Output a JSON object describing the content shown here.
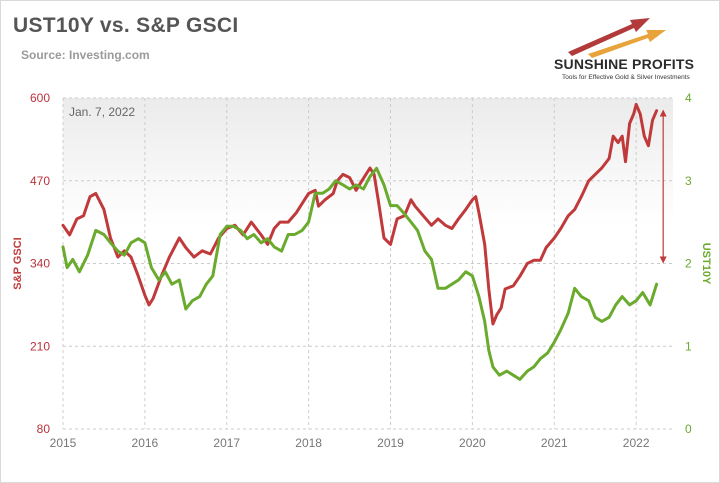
{
  "header": {
    "title": "UST10Y vs. S&P GSCI",
    "source": "Source: Investing.com"
  },
  "logo": {
    "name": "SUNSHINE PROFITS",
    "tagline": "Tools for Effective Gold & Silver Investments"
  },
  "annotation": "Jan. 7, 2022",
  "chart_data": {
    "type": "line",
    "title": "UST10Y vs. S&P GSCI",
    "x_ticks": [
      "2015",
      "2016",
      "2017",
      "2018",
      "2019",
      "2020",
      "2021",
      "2022"
    ],
    "xlim": [
      2015.0,
      2022.45
    ],
    "grid": true,
    "y_left": {
      "label": "S&P GSCI",
      "ticks": [
        600,
        470,
        340,
        210,
        80
      ],
      "lim": [
        80,
        600
      ]
    },
    "y_right": {
      "label": "UST10Y",
      "ticks": [
        4,
        3,
        2,
        1,
        0
      ],
      "lim": [
        0,
        4
      ]
    },
    "series": [
      {
        "name": "S&P GSCI",
        "axis": "left",
        "color": "#c0393b",
        "points": [
          [
            2015.0,
            400
          ],
          [
            2015.08,
            385
          ],
          [
            2015.17,
            410
          ],
          [
            2015.25,
            415
          ],
          [
            2015.33,
            445
          ],
          [
            2015.4,
            450
          ],
          [
            2015.5,
            425
          ],
          [
            2015.58,
            380
          ],
          [
            2015.67,
            350
          ],
          [
            2015.75,
            360
          ],
          [
            2015.83,
            350
          ],
          [
            2015.92,
            320
          ],
          [
            2016.0,
            290
          ],
          [
            2016.05,
            275
          ],
          [
            2016.1,
            285
          ],
          [
            2016.2,
            320
          ],
          [
            2016.3,
            350
          ],
          [
            2016.42,
            380
          ],
          [
            2016.5,
            365
          ],
          [
            2016.6,
            350
          ],
          [
            2016.7,
            360
          ],
          [
            2016.8,
            355
          ],
          [
            2016.9,
            380
          ],
          [
            2017.0,
            395
          ],
          [
            2017.1,
            400
          ],
          [
            2017.2,
            385
          ],
          [
            2017.3,
            405
          ],
          [
            2017.42,
            385
          ],
          [
            2017.5,
            370
          ],
          [
            2017.58,
            395
          ],
          [
            2017.65,
            405
          ],
          [
            2017.75,
            405
          ],
          [
            2017.85,
            420
          ],
          [
            2017.95,
            440
          ],
          [
            2018.0,
            450
          ],
          [
            2018.08,
            455
          ],
          [
            2018.12,
            430
          ],
          [
            2018.2,
            440
          ],
          [
            2018.3,
            450
          ],
          [
            2018.35,
            470
          ],
          [
            2018.42,
            480
          ],
          [
            2018.5,
            475
          ],
          [
            2018.58,
            455
          ],
          [
            2018.65,
            470
          ],
          [
            2018.75,
            490
          ],
          [
            2018.8,
            480
          ],
          [
            2018.85,
            440
          ],
          [
            2018.92,
            380
          ],
          [
            2019.0,
            370
          ],
          [
            2019.08,
            410
          ],
          [
            2019.17,
            415
          ],
          [
            2019.25,
            440
          ],
          [
            2019.3,
            430
          ],
          [
            2019.4,
            415
          ],
          [
            2019.5,
            400
          ],
          [
            2019.58,
            410
          ],
          [
            2019.67,
            400
          ],
          [
            2019.75,
            395
          ],
          [
            2019.83,
            410
          ],
          [
            2019.92,
            425
          ],
          [
            2020.0,
            440
          ],
          [
            2020.04,
            445
          ],
          [
            2020.08,
            420
          ],
          [
            2020.15,
            370
          ],
          [
            2020.2,
            300
          ],
          [
            2020.25,
            245
          ],
          [
            2020.3,
            260
          ],
          [
            2020.35,
            270
          ],
          [
            2020.4,
            300
          ],
          [
            2020.5,
            305
          ],
          [
            2020.58,
            320
          ],
          [
            2020.67,
            340
          ],
          [
            2020.75,
            345
          ],
          [
            2020.83,
            345
          ],
          [
            2020.9,
            365
          ],
          [
            2021.0,
            380
          ],
          [
            2021.08,
            395
          ],
          [
            2021.17,
            415
          ],
          [
            2021.25,
            425
          ],
          [
            2021.33,
            445
          ],
          [
            2021.42,
            470
          ],
          [
            2021.5,
            480
          ],
          [
            2021.58,
            490
          ],
          [
            2021.67,
            505
          ],
          [
            2021.72,
            540
          ],
          [
            2021.78,
            530
          ],
          [
            2021.83,
            540
          ],
          [
            2021.87,
            500
          ],
          [
            2021.92,
            560
          ],
          [
            2021.97,
            575
          ],
          [
            2022.0,
            590
          ],
          [
            2022.05,
            575
          ],
          [
            2022.1,
            540
          ],
          [
            2022.15,
            525
          ],
          [
            2022.2,
            565
          ],
          [
            2022.25,
            580
          ]
        ]
      },
      {
        "name": "UST10Y",
        "axis": "right",
        "color": "#6aaa2d",
        "points": [
          [
            2015.0,
            2.2
          ],
          [
            2015.05,
            1.95
          ],
          [
            2015.12,
            2.05
          ],
          [
            2015.2,
            1.9
          ],
          [
            2015.3,
            2.1
          ],
          [
            2015.4,
            2.4
          ],
          [
            2015.5,
            2.35
          ],
          [
            2015.58,
            2.25
          ],
          [
            2015.67,
            2.15
          ],
          [
            2015.75,
            2.1
          ],
          [
            2015.83,
            2.25
          ],
          [
            2015.92,
            2.3
          ],
          [
            2016.0,
            2.25
          ],
          [
            2016.08,
            1.95
          ],
          [
            2016.17,
            1.8
          ],
          [
            2016.25,
            1.9
          ],
          [
            2016.33,
            1.75
          ],
          [
            2016.42,
            1.8
          ],
          [
            2016.5,
            1.45
          ],
          [
            2016.58,
            1.55
          ],
          [
            2016.67,
            1.6
          ],
          [
            2016.75,
            1.75
          ],
          [
            2016.83,
            1.85
          ],
          [
            2016.92,
            2.35
          ],
          [
            2017.0,
            2.45
          ],
          [
            2017.08,
            2.45
          ],
          [
            2017.17,
            2.4
          ],
          [
            2017.25,
            2.3
          ],
          [
            2017.33,
            2.35
          ],
          [
            2017.42,
            2.25
          ],
          [
            2017.5,
            2.3
          ],
          [
            2017.58,
            2.2
          ],
          [
            2017.67,
            2.15
          ],
          [
            2017.75,
            2.35
          ],
          [
            2017.83,
            2.35
          ],
          [
            2017.92,
            2.4
          ],
          [
            2018.0,
            2.5
          ],
          [
            2018.08,
            2.85
          ],
          [
            2018.17,
            2.85
          ],
          [
            2018.25,
            2.9
          ],
          [
            2018.33,
            3.0
          ],
          [
            2018.42,
            2.95
          ],
          [
            2018.5,
            2.9
          ],
          [
            2018.58,
            2.95
          ],
          [
            2018.67,
            2.9
          ],
          [
            2018.75,
            3.05
          ],
          [
            2018.83,
            3.15
          ],
          [
            2018.92,
            2.95
          ],
          [
            2019.0,
            2.7
          ],
          [
            2019.08,
            2.7
          ],
          [
            2019.17,
            2.6
          ],
          [
            2019.25,
            2.5
          ],
          [
            2019.33,
            2.4
          ],
          [
            2019.42,
            2.15
          ],
          [
            2019.5,
            2.05
          ],
          [
            2019.58,
            1.7
          ],
          [
            2019.67,
            1.7
          ],
          [
            2019.75,
            1.75
          ],
          [
            2019.83,
            1.8
          ],
          [
            2019.92,
            1.9
          ],
          [
            2020.0,
            1.85
          ],
          [
            2020.08,
            1.6
          ],
          [
            2020.15,
            1.3
          ],
          [
            2020.2,
            0.95
          ],
          [
            2020.25,
            0.75
          ],
          [
            2020.33,
            0.65
          ],
          [
            2020.42,
            0.7
          ],
          [
            2020.5,
            0.65
          ],
          [
            2020.58,
            0.6
          ],
          [
            2020.67,
            0.7
          ],
          [
            2020.75,
            0.75
          ],
          [
            2020.83,
            0.85
          ],
          [
            2020.92,
            0.92
          ],
          [
            2021.0,
            1.05
          ],
          [
            2021.08,
            1.2
          ],
          [
            2021.17,
            1.4
          ],
          [
            2021.25,
            1.7
          ],
          [
            2021.33,
            1.6
          ],
          [
            2021.42,
            1.55
          ],
          [
            2021.5,
            1.35
          ],
          [
            2021.58,
            1.3
          ],
          [
            2021.67,
            1.35
          ],
          [
            2021.75,
            1.5
          ],
          [
            2021.83,
            1.6
          ],
          [
            2021.92,
            1.5
          ],
          [
            2022.0,
            1.55
          ],
          [
            2022.08,
            1.65
          ],
          [
            2022.17,
            1.5
          ],
          [
            2022.25,
            1.75
          ]
        ]
      }
    ],
    "shaded_area": {
      "from_y_left": 400,
      "to_y_left": 600,
      "color": "#f2f2f2"
    },
    "arrow": {
      "x": 2022.33,
      "y_from_left": 582,
      "y_to_left": 340,
      "color": "#c0393b"
    }
  }
}
